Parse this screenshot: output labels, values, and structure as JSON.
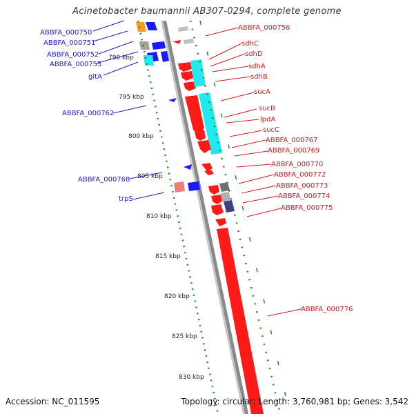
{
  "map": {
    "title": "Acinetobacter baumannii AB307-0294, complete genome",
    "accession": "Accession: NC_011595",
    "summary": "Topology: circular; Length: 3,760,981 bp; Genes: 3,542"
  },
  "colors": {
    "plus_strand_gene": "#ff1a1a",
    "minus_strand_gene": "#1a1aff",
    "cds_highlight": "#22e8f0",
    "backbone": "#808080",
    "gc_ticks": "#1e8c1e",
    "left_label": "#1c1ccc",
    "right_label": "#cc1c1c"
  },
  "scale_labels": [
    "790 kbp",
    "795 kbp",
    "800 kbp",
    "805 kbp",
    "810 kbp",
    "815 kbp",
    "820 kbp",
    "825 kbp",
    "830 kbp"
  ],
  "labels_left": [
    "ABBFA_000750",
    "ABBFA_000751",
    "ABBFA_000752",
    "ABBFA_000755",
    "gltA",
    "ABBFA_000762",
    "ABBFA_000768",
    "trpS"
  ],
  "labels_right": [
    "ABBFA_000756",
    "sdhC",
    "sdhD",
    "sdhA",
    "sdhB",
    "sucA",
    "sucB",
    "lpdA",
    "sucC",
    "ABBFA_000767",
    "ABBFA_000769",
    "ABBFA_000770",
    "ABBFA_000772",
    "ABBFA_000773",
    "ABBFA_000774",
    "ABBFA_000775",
    "ABBFA_000776"
  ]
}
